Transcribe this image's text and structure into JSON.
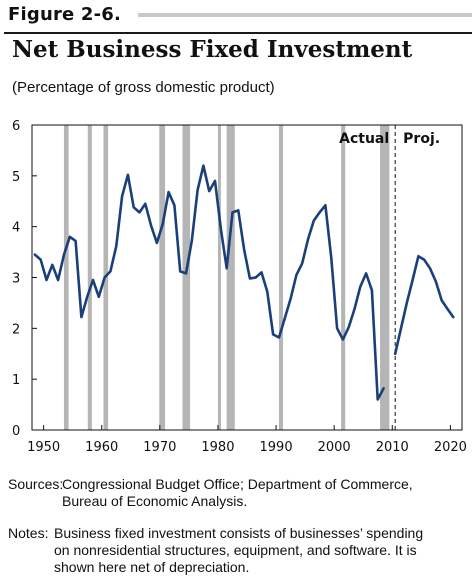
{
  "figure_label": "Figure 2-6.",
  "title": "Net Business Fixed Investment",
  "subtitle": "(Percentage of gross domestic product)",
  "sources_label": "Sources:",
  "sources_lines": [
    "Congressional Budget Office; Department of Commerce,",
    "Bureau of Economic Analysis."
  ],
  "notes_label": "Notes:",
  "notes_lines": [
    "Business fixed investment consists of businesses’ spending",
    "on nonresidential structures, equipment, and software. It is",
    "shown here net of depreciation."
  ],
  "chart_data": {
    "type": "line",
    "xlim": [
      1948,
      2022
    ],
    "ylim": [
      0,
      6
    ],
    "x_ticks": [
      1950,
      1960,
      1970,
      1980,
      1990,
      2000,
      2010,
      2020
    ],
    "y_ticks": [
      0,
      1,
      2,
      3,
      4,
      5,
      6
    ],
    "annotations": {
      "actual": "Actual",
      "projected": "Proj.",
      "divider_x": 2010.5
    },
    "line_color": "#1b3f7a",
    "recession_color": "#b5b5b5",
    "recessions": [
      [
        1953.5,
        1954.3
      ],
      [
        1957.6,
        1958.3
      ],
      [
        1960.3,
        1961.1
      ],
      [
        1969.9,
        1970.9
      ],
      [
        1973.9,
        1975.2
      ],
      [
        1980.0,
        1980.5
      ],
      [
        1981.5,
        1982.9
      ],
      [
        1990.5,
        1991.2
      ],
      [
        2001.2,
        2001.9
      ],
      [
        2007.9,
        2009.5
      ]
    ],
    "series": [
      {
        "values": [
          [
            1948.5,
            3.45
          ],
          [
            1949.5,
            3.35
          ],
          [
            1950.5,
            2.95
          ],
          [
            1951.5,
            3.25
          ],
          [
            1952.5,
            2.95
          ],
          [
            1953.5,
            3.45
          ],
          [
            1954.5,
            3.8
          ],
          [
            1955.5,
            3.72
          ],
          [
            1956.5,
            2.22
          ],
          [
            1957.5,
            2.62
          ],
          [
            1958.5,
            2.95
          ],
          [
            1959.5,
            2.62
          ],
          [
            1960.5,
            3.0
          ],
          [
            1961.5,
            3.12
          ],
          [
            1962.5,
            3.62
          ],
          [
            1963.5,
            4.6
          ],
          [
            1964.5,
            5.02
          ],
          [
            1965.5,
            4.38
          ],
          [
            1966.5,
            4.28
          ],
          [
            1967.5,
            4.45
          ],
          [
            1968.5,
            4.02
          ],
          [
            1969.5,
            3.68
          ],
          [
            1970.5,
            4.05
          ],
          [
            1971.5,
            4.68
          ],
          [
            1972.5,
            4.42
          ],
          [
            1973.5,
            3.12
          ],
          [
            1974.5,
            3.08
          ],
          [
            1975.5,
            3.72
          ],
          [
            1976.5,
            4.72
          ],
          [
            1977.5,
            5.2
          ],
          [
            1978.5,
            4.7
          ],
          [
            1979.5,
            4.9
          ],
          [
            1980.5,
            3.95
          ],
          [
            1981.5,
            3.18
          ],
          [
            1982.5,
            4.28
          ],
          [
            1983.5,
            4.32
          ],
          [
            1984.5,
            3.55
          ],
          [
            1985.5,
            2.98
          ],
          [
            1986.5,
            3.0
          ],
          [
            1987.5,
            3.1
          ],
          [
            1988.5,
            2.72
          ],
          [
            1989.5,
            1.88
          ],
          [
            1990.5,
            1.82
          ],
          [
            1991.5,
            2.2
          ],
          [
            1992.5,
            2.58
          ],
          [
            1993.5,
            3.05
          ],
          [
            1994.5,
            3.28
          ],
          [
            1995.5,
            3.75
          ],
          [
            1996.5,
            4.12
          ],
          [
            1997.5,
            4.28
          ],
          [
            1998.5,
            4.42
          ],
          [
            1999.5,
            3.38
          ],
          [
            2000.5,
            2.0
          ],
          [
            2001.5,
            1.78
          ],
          [
            2002.5,
            2.02
          ],
          [
            2003.5,
            2.38
          ],
          [
            2004.5,
            2.82
          ],
          [
            2005.5,
            3.08
          ],
          [
            2006.5,
            2.75
          ],
          [
            2007.5,
            0.6
          ],
          [
            2008.5,
            0.82
          ]
        ]
      },
      {
        "values": [
          [
            2010.5,
            1.5
          ],
          [
            2011.5,
            2.0
          ],
          [
            2012.5,
            2.5
          ],
          [
            2013.5,
            2.95
          ],
          [
            2014.5,
            3.42
          ],
          [
            2015.5,
            3.35
          ],
          [
            2016.5,
            3.18
          ],
          [
            2017.5,
            2.92
          ],
          [
            2018.5,
            2.55
          ],
          [
            2019.5,
            2.38
          ],
          [
            2020.5,
            2.22
          ]
        ]
      }
    ]
  }
}
